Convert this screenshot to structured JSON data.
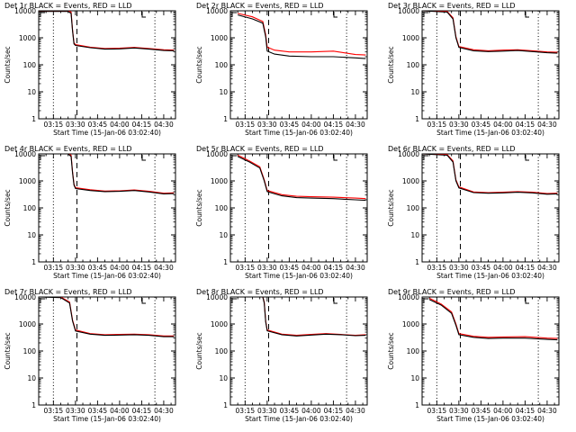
{
  "chart_data": [
    {
      "type": "line",
      "title": "Det 1r BLACK = Events, RED = LLD",
      "xlabel": "Start Time (15-Jan-06 03:02:40)",
      "ylabel": "Counts/sec",
      "yscale": "log",
      "ylim": [
        1,
        10000
      ],
      "xlim": [
        "03:05",
        "04:38"
      ],
      "x_ticks": [
        "03:15",
        "03:30",
        "03:45",
        "04:00",
        "04:15",
        "04:30"
      ],
      "y_ticks": [
        "1",
        "10",
        "100",
        "1000",
        "10000"
      ],
      "vlines": [
        {
          "x": "03:15",
          "style": "dotted"
        },
        {
          "x": "03:31",
          "style": "dashed"
        },
        {
          "x": "04:24",
          "style": "dotted"
        }
      ],
      "series": [
        {
          "name": "Events",
          "color": "#000000",
          "x": [
            "03:05",
            "03:25",
            "03:27",
            "03:28",
            "03:29",
            "03:30",
            "03:40",
            "03:50",
            "04:00",
            "04:10",
            "04:20",
            "04:30",
            "04:37"
          ],
          "y": [
            9500,
            9500,
            8000,
            1800,
            600,
            520,
            430,
            380,
            390,
            420,
            380,
            340,
            330
          ]
        },
        {
          "name": "LLD",
          "color": "#ff0000",
          "x": [
            "03:05",
            "03:25",
            "03:27",
            "03:28",
            "03:29",
            "03:30",
            "03:40",
            "03:50",
            "04:00",
            "04:10",
            "04:20",
            "04:30",
            "04:37"
          ],
          "y": [
            10000,
            10000,
            9000,
            2000,
            650,
            560,
            450,
            400,
            410,
            440,
            400,
            360,
            350
          ]
        }
      ]
    },
    {
      "type": "line",
      "title": "Det 2r BLACK = Events, RED = LLD",
      "xlabel": "Start Time (15-Jan-06 03:02:40)",
      "ylabel": "Counts/sec",
      "yscale": "log",
      "ylim": [
        1,
        10000
      ],
      "xlim": [
        "03:05",
        "04:38"
      ],
      "x_ticks": [
        "03:15",
        "03:30",
        "03:45",
        "04:00",
        "04:15",
        "04:30"
      ],
      "y_ticks": [
        "1",
        "10",
        "100",
        "1000",
        "10000"
      ],
      "vlines": [
        {
          "x": "03:15",
          "style": "dotted"
        },
        {
          "x": "03:31",
          "style": "dashed"
        },
        {
          "x": "04:24",
          "style": "dotted"
        }
      ],
      "series": [
        {
          "name": "Events",
          "color": "#000000",
          "x": [
            "03:10",
            "03:20",
            "03:27",
            "03:29",
            "03:30",
            "03:35",
            "03:45",
            "04:00",
            "04:15",
            "04:30",
            "04:37"
          ],
          "y": [
            7000,
            5000,
            3500,
            1100,
            320,
            250,
            210,
            200,
            200,
            180,
            170
          ]
        },
        {
          "name": "LLD",
          "color": "#ff0000",
          "x": [
            "03:10",
            "03:20",
            "03:27",
            "03:29",
            "03:30",
            "03:35",
            "03:45",
            "04:00",
            "04:15",
            "04:30",
            "04:37"
          ],
          "y": [
            8000,
            6000,
            4000,
            1300,
            450,
            350,
            300,
            300,
            320,
            240,
            230
          ]
        }
      ]
    },
    {
      "type": "line",
      "title": "Det 3r BLACK = Events, RED = LLD",
      "xlabel": "Start Time (15-Jan-06 03:02:40)",
      "ylabel": "Counts/sec",
      "yscale": "log",
      "ylim": [
        1,
        10000
      ],
      "xlim": [
        "03:05",
        "04:38"
      ],
      "x_ticks": [
        "03:15",
        "03:30",
        "03:45",
        "04:00",
        "04:15",
        "04:30"
      ],
      "y_ticks": [
        "1",
        "10",
        "100",
        "1000",
        "10000"
      ],
      "vlines": [
        {
          "x": "03:15",
          "style": "dotted"
        },
        {
          "x": "03:31",
          "style": "dashed"
        },
        {
          "x": "04:24",
          "style": "dotted"
        }
      ],
      "series": [
        {
          "name": "Events",
          "color": "#000000",
          "x": [
            "03:05",
            "03:22",
            "03:26",
            "03:28",
            "03:30",
            "03:40",
            "03:50",
            "04:00",
            "04:10",
            "04:20",
            "04:30",
            "04:37"
          ],
          "y": [
            10000,
            9000,
            5000,
            1000,
            440,
            330,
            310,
            320,
            340,
            310,
            280,
            270
          ]
        },
        {
          "name": "LLD",
          "color": "#ff0000",
          "x": [
            "03:05",
            "03:22",
            "03:26",
            "03:28",
            "03:30",
            "03:40",
            "03:50",
            "04:00",
            "04:10",
            "04:20",
            "04:30",
            "04:37"
          ],
          "y": [
            10000,
            9500,
            5500,
            1100,
            480,
            360,
            330,
            350,
            360,
            330,
            300,
            290
          ]
        }
      ]
    },
    {
      "type": "line",
      "title": "Det 4r BLACK = Events, RED = LLD",
      "xlabel": "Start Time (15-Jan-06 03:02:40)",
      "ylabel": "Counts/sec",
      "yscale": "log",
      "ylim": [
        1,
        10000
      ],
      "xlim": [
        "03:05",
        "04:38"
      ],
      "x_ticks": [
        "03:15",
        "03:30",
        "03:45",
        "04:00",
        "04:15",
        "04:30"
      ],
      "y_ticks": [
        "1",
        "10",
        "100",
        "1000",
        "10000"
      ],
      "vlines": [
        {
          "x": "03:15",
          "style": "dotted"
        },
        {
          "x": "03:31",
          "style": "dashed"
        },
        {
          "x": "04:24",
          "style": "dotted"
        }
      ],
      "series": [
        {
          "name": "Events",
          "color": "#000000",
          "x": [
            "03:05",
            "03:25",
            "03:27",
            "03:28",
            "03:29",
            "03:30",
            "03:40",
            "03:50",
            "04:00",
            "04:10",
            "04:20",
            "04:30",
            "04:37"
          ],
          "y": [
            10000,
            10000,
            8000,
            2000,
            700,
            520,
            440,
            400,
            410,
            440,
            390,
            330,
            340
          ]
        },
        {
          "name": "LLD",
          "color": "#ff0000",
          "x": [
            "03:05",
            "03:25",
            "03:27",
            "03:28",
            "03:29",
            "03:30",
            "03:40",
            "03:50",
            "04:00",
            "04:10",
            "04:20",
            "04:30",
            "04:37"
          ],
          "y": [
            10000,
            10000,
            9000,
            2200,
            760,
            560,
            470,
            420,
            430,
            460,
            410,
            350,
            360
          ]
        }
      ]
    },
    {
      "type": "line",
      "title": "Det 5r BLACK = Events, RED = LLD",
      "xlabel": "Start Time (15-Jan-06 03:02:40)",
      "ylabel": "Counts/sec",
      "yscale": "log",
      "ylim": [
        1,
        10000
      ],
      "xlim": [
        "03:05",
        "04:38"
      ],
      "x_ticks": [
        "03:15",
        "03:30",
        "03:45",
        "04:00",
        "04:15",
        "04:30"
      ],
      "y_ticks": [
        "1",
        "10",
        "100",
        "1000",
        "10000"
      ],
      "vlines": [
        {
          "x": "03:15",
          "style": "dotted"
        },
        {
          "x": "03:31",
          "style": "dashed"
        },
        {
          "x": "04:24",
          "style": "dotted"
        }
      ],
      "series": [
        {
          "name": "Events",
          "color": "#000000",
          "x": [
            "03:10",
            "03:18",
            "03:25",
            "03:28",
            "03:30",
            "03:40",
            "03:50",
            "04:00",
            "04:15",
            "04:30",
            "04:37"
          ],
          "y": [
            8000,
            5000,
            3000,
            1000,
            400,
            280,
            240,
            230,
            220,
            200,
            190
          ]
        },
        {
          "name": "LLD",
          "color": "#ff0000",
          "x": [
            "03:10",
            "03:18",
            "03:25",
            "03:28",
            "03:30",
            "03:40",
            "03:50",
            "04:00",
            "04:15",
            "04:30",
            "04:37"
          ],
          "y": [
            9000,
            5500,
            3300,
            1100,
            440,
            310,
            270,
            260,
            250,
            230,
            220
          ]
        }
      ]
    },
    {
      "type": "line",
      "title": "Det 6r BLACK = Events, RED = LLD",
      "xlabel": "Start Time (15-Jan-06 03:02:40)",
      "ylabel": "Counts/sec",
      "yscale": "log",
      "ylim": [
        1,
        10000
      ],
      "xlim": [
        "03:05",
        "04:38"
      ],
      "x_ticks": [
        "03:15",
        "03:30",
        "03:45",
        "04:00",
        "04:15",
        "04:30"
      ],
      "y_ticks": [
        "1",
        "10",
        "100",
        "1000",
        "10000"
      ],
      "vlines": [
        {
          "x": "03:15",
          "style": "dotted"
        },
        {
          "x": "03:31",
          "style": "dashed"
        },
        {
          "x": "04:24",
          "style": "dotted"
        }
      ],
      "series": [
        {
          "name": "Events",
          "color": "#000000",
          "x": [
            "03:05",
            "03:22",
            "03:26",
            "03:28",
            "03:30",
            "03:40",
            "03:50",
            "04:00",
            "04:10",
            "04:20",
            "04:30",
            "04:37"
          ],
          "y": [
            10000,
            9000,
            5000,
            1000,
            550,
            370,
            350,
            360,
            380,
            360,
            320,
            330
          ]
        },
        {
          "name": "LLD",
          "color": "#ff0000",
          "x": [
            "03:05",
            "03:22",
            "03:26",
            "03:28",
            "03:30",
            "03:40",
            "03:50",
            "04:00",
            "04:10",
            "04:20",
            "04:30",
            "04:37"
          ],
          "y": [
            10000,
            9500,
            5500,
            1100,
            600,
            390,
            370,
            380,
            400,
            380,
            340,
            350
          ]
        }
      ]
    },
    {
      "type": "line",
      "title": "Det 7r BLACK = Events, RED = LLD",
      "xlabel": "Start Time (15-Jan-06 03:02:40)",
      "ylabel": "Counts/sec",
      "yscale": "log",
      "ylim": [
        1,
        10000
      ],
      "xlim": [
        "03:05",
        "04:38"
      ],
      "x_ticks": [
        "03:15",
        "03:30",
        "03:45",
        "04:00",
        "04:15",
        "04:30"
      ],
      "y_ticks": [
        "1",
        "10",
        "100",
        "1000",
        "10000"
      ],
      "vlines": [
        {
          "x": "03:15",
          "style": "dotted"
        },
        {
          "x": "03:31",
          "style": "dashed"
        },
        {
          "x": "04:24",
          "style": "dotted"
        }
      ],
      "series": [
        {
          "name": "Events",
          "color": "#000000",
          "x": [
            "03:05",
            "03:20",
            "03:26",
            "03:28",
            "03:30",
            "03:40",
            "03:50",
            "04:00",
            "04:10",
            "04:20",
            "04:30",
            "04:37"
          ],
          "y": [
            10000,
            9500,
            6000,
            1300,
            550,
            420,
            380,
            390,
            400,
            380,
            340,
            340
          ]
        },
        {
          "name": "LLD",
          "color": "#ff0000",
          "x": [
            "03:05",
            "03:20",
            "03:26",
            "03:28",
            "03:30",
            "03:40",
            "03:50",
            "04:00",
            "04:10",
            "04:20",
            "04:30",
            "04:37"
          ],
          "y": [
            10000,
            10000,
            6500,
            1400,
            600,
            440,
            400,
            410,
            420,
            400,
            360,
            360
          ]
        }
      ]
    },
    {
      "type": "line",
      "title": "Det 8r BLACK = Events, RED = LLD",
      "xlabel": "Start Time (15-Jan-06 03:02:40)",
      "ylabel": "Counts/sec",
      "yscale": "log",
      "ylim": [
        1,
        10000
      ],
      "xlim": [
        "03:05",
        "04:38"
      ],
      "x_ticks": [
        "03:15",
        "03:30",
        "03:45",
        "04:00",
        "04:15",
        "04:30"
      ],
      "y_ticks": [
        "1",
        "10",
        "100",
        "1000",
        "10000"
      ],
      "vlines": [
        {
          "x": "03:15",
          "style": "dotted"
        },
        {
          "x": "03:31",
          "style": "dashed"
        },
        {
          "x": "04:24",
          "style": "dotted"
        }
      ],
      "series": [
        {
          "name": "Events",
          "color": "#000000",
          "x": [
            "03:05",
            "03:27",
            "03:28",
            "03:29",
            "03:30",
            "03:40",
            "03:50",
            "04:00",
            "04:10",
            "04:20",
            "04:30",
            "04:37"
          ],
          "y": [
            10000,
            10000,
            6000,
            1200,
            560,
            400,
            360,
            390,
            420,
            400,
            370,
            380
          ]
        },
        {
          "name": "LLD",
          "color": "#ff0000",
          "x": [
            "03:05",
            "03:27",
            "03:28",
            "03:29",
            "03:30",
            "03:40",
            "03:50",
            "04:00",
            "04:10",
            "04:20",
            "04:30",
            "04:37"
          ],
          "y": [
            10000,
            10000,
            6500,
            1300,
            600,
            420,
            380,
            410,
            440,
            410,
            380,
            400
          ]
        }
      ]
    },
    {
      "type": "line",
      "title": "Det 9r BLACK = Events, RED = LLD",
      "xlabel": "Start Time (15-Jan-06 03:02:40)",
      "ylabel": "Counts/sec",
      "yscale": "log",
      "ylim": [
        1,
        10000
      ],
      "xlim": [
        "03:05",
        "04:38"
      ],
      "x_ticks": [
        "03:15",
        "03:30",
        "03:45",
        "04:00",
        "04:15",
        "04:30"
      ],
      "y_ticks": [
        "1",
        "10",
        "100",
        "1000",
        "10000"
      ],
      "vlines": [
        {
          "x": "03:15",
          "style": "dotted"
        },
        {
          "x": "03:31",
          "style": "dashed"
        },
        {
          "x": "04:24",
          "style": "dotted"
        }
      ],
      "series": [
        {
          "name": "Events",
          "color": "#000000",
          "x": [
            "03:10",
            "03:18",
            "03:25",
            "03:28",
            "03:30",
            "03:40",
            "03:50",
            "04:00",
            "04:15",
            "04:30",
            "04:37"
          ],
          "y": [
            8000,
            5000,
            2500,
            900,
            400,
            320,
            290,
            300,
            300,
            270,
            260
          ]
        },
        {
          "name": "LLD",
          "color": "#ff0000",
          "x": [
            "03:10",
            "03:18",
            "03:25",
            "03:28",
            "03:30",
            "03:40",
            "03:50",
            "04:00",
            "04:15",
            "04:30",
            "04:37"
          ],
          "y": [
            9000,
            5500,
            2800,
            1000,
            440,
            350,
            320,
            330,
            340,
            300,
            290
          ]
        }
      ]
    }
  ]
}
